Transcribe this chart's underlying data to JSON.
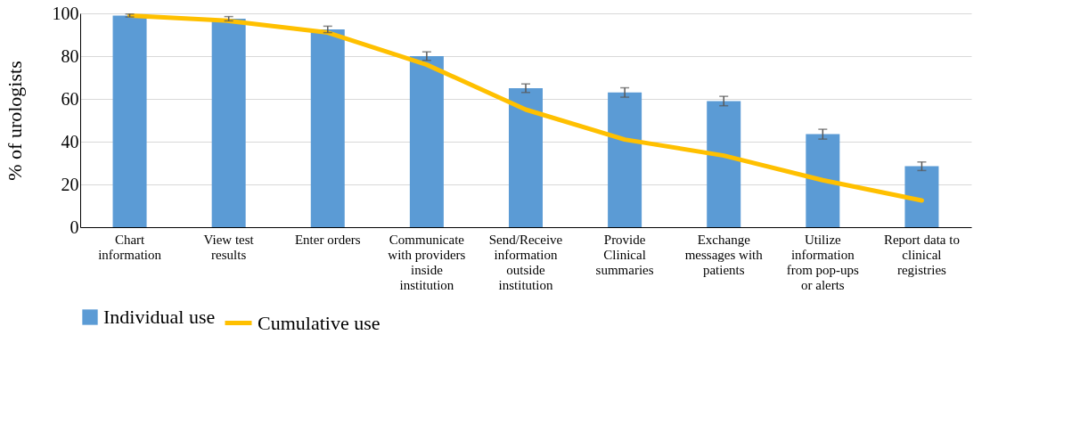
{
  "chart_data": {
    "type": "bar",
    "ylabel": "% of urologists",
    "categories": [
      "Chart\ninformation",
      "View test\nresults",
      "Enter orders",
      "Communicate\nwith providers\ninside\ninstitution",
      "Send/Receive\ninformation\noutside\ninstitution",
      "Provide\nClinical\nsummaries",
      "Exchange\nmessages with\npatients",
      "Utilize\ninformation\nfrom pop-ups\nor alerts",
      "Report data to\nclinical\nregistries"
    ],
    "series": [
      {
        "name": "Individual use",
        "color": "#5b9bd5",
        "values": [
          99,
          97.5,
          92.5,
          80,
          65,
          63,
          59,
          43.5,
          28.5
        ],
        "errors": [
          0.7,
          1,
          1.5,
          2,
          2,
          2.2,
          2.2,
          2.3,
          2
        ]
      },
      {
        "name": "Cumulative use",
        "type": "line",
        "color": "#ffc000",
        "values": [
          99,
          96.5,
          91,
          76,
          55,
          41,
          33.5,
          22,
          12.5
        ]
      }
    ],
    "ylim": [
      0,
      100
    ],
    "yticks": [
      0,
      20,
      40,
      60,
      80,
      100
    ],
    "grid": "y",
    "legend": "bottom"
  }
}
